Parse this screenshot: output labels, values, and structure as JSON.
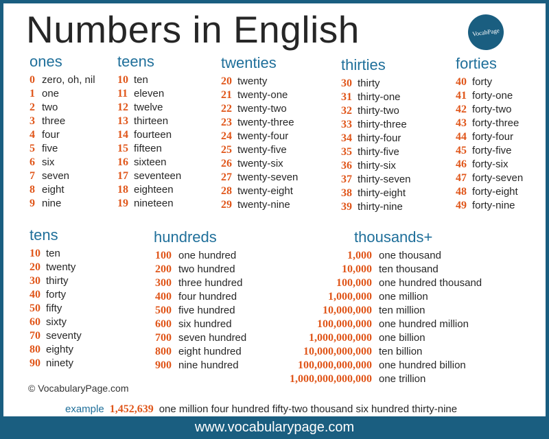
{
  "title": "Numbers in English",
  "logo": "VocabPage",
  "ones": {
    "heading": "ones",
    "items": [
      [
        "0",
        "zero, oh, nil"
      ],
      [
        "1",
        "one"
      ],
      [
        "2",
        "two"
      ],
      [
        "3",
        "three"
      ],
      [
        "4",
        "four"
      ],
      [
        "5",
        "five"
      ],
      [
        "6",
        "six"
      ],
      [
        "7",
        "seven"
      ],
      [
        "8",
        "eight"
      ],
      [
        "9",
        "nine"
      ]
    ]
  },
  "teens": {
    "heading": "teens",
    "items": [
      [
        "10",
        "ten"
      ],
      [
        "11",
        "eleven"
      ],
      [
        "12",
        "twelve"
      ],
      [
        "13",
        "thirteen"
      ],
      [
        "14",
        "fourteen"
      ],
      [
        "15",
        "fifteen"
      ],
      [
        "16",
        "sixteen"
      ],
      [
        "17",
        "seventeen"
      ],
      [
        "18",
        "eighteen"
      ],
      [
        "19",
        "nineteen"
      ]
    ]
  },
  "twenties": {
    "heading": "twenties",
    "items": [
      [
        "20",
        "twenty"
      ],
      [
        "21",
        "twenty-one"
      ],
      [
        "22",
        "twenty-two"
      ],
      [
        "23",
        "twenty-three"
      ],
      [
        "24",
        "twenty-four"
      ],
      [
        "25",
        "twenty-five"
      ],
      [
        "26",
        "twenty-six"
      ],
      [
        "27",
        "twenty-seven"
      ],
      [
        "28",
        "twenty-eight"
      ],
      [
        "29",
        "twenty-nine"
      ]
    ]
  },
  "thirties": {
    "heading": "thirties",
    "items": [
      [
        "30",
        "thirty"
      ],
      [
        "31",
        "thirty-one"
      ],
      [
        "32",
        "thirty-two"
      ],
      [
        "33",
        "thirty-three"
      ],
      [
        "34",
        "thirty-four"
      ],
      [
        "35",
        "thirty-five"
      ],
      [
        "36",
        "thirty-six"
      ],
      [
        "37",
        "thirty-seven"
      ],
      [
        "38",
        "thirty-eight"
      ],
      [
        "39",
        "thirty-nine"
      ]
    ]
  },
  "forties": {
    "heading": "forties",
    "items": [
      [
        "40",
        "forty"
      ],
      [
        "41",
        "forty-one"
      ],
      [
        "42",
        "forty-two"
      ],
      [
        "43",
        "forty-three"
      ],
      [
        "44",
        "forty-four"
      ],
      [
        "45",
        "forty-five"
      ],
      [
        "46",
        "forty-six"
      ],
      [
        "47",
        "forty-seven"
      ],
      [
        "48",
        "forty-eight"
      ],
      [
        "49",
        "forty-nine"
      ]
    ]
  },
  "tens": {
    "heading": "tens",
    "items": [
      [
        "10",
        "ten"
      ],
      [
        "20",
        "twenty"
      ],
      [
        "30",
        "thirty"
      ],
      [
        "40",
        "forty"
      ],
      [
        "50",
        "fifty"
      ],
      [
        "60",
        "sixty"
      ],
      [
        "70",
        "seventy"
      ],
      [
        "80",
        "eighty"
      ],
      [
        "90",
        "ninety"
      ]
    ]
  },
  "hundreds": {
    "heading": "hundreds",
    "items": [
      [
        "100",
        "one hundred"
      ],
      [
        "200",
        "two hundred"
      ],
      [
        "300",
        "three hundred"
      ],
      [
        "400",
        "four hundred"
      ],
      [
        "500",
        "five hundred"
      ],
      [
        "600",
        "six hundred"
      ],
      [
        "700",
        "seven hundred"
      ],
      [
        "800",
        "eight hundred"
      ],
      [
        "900",
        "nine hundred"
      ]
    ]
  },
  "thousands": {
    "heading": "thousands+",
    "items": [
      [
        "1,000",
        "one thousand"
      ],
      [
        "10,000",
        "ten thousand"
      ],
      [
        "100,000",
        "one hundred thousand"
      ],
      [
        "1,000,000",
        "one million"
      ],
      [
        "10,000,000",
        "ten million"
      ],
      [
        "100,000,000",
        "one hundred million"
      ],
      [
        "1,000,000,000",
        "one billion"
      ],
      [
        "10,000,000,000",
        "ten billion"
      ],
      [
        "100,000,000,000",
        "one hundred billion"
      ],
      [
        "1,000,000,000,000",
        "one trillion"
      ]
    ]
  },
  "copyright": "© VocabularyPage.com",
  "example": {
    "label": "example",
    "number": "1,452,639",
    "words": "one million four hundred fifty-two thousand six hundred thirty-nine"
  },
  "footer": "www.vocabularypage.com",
  "colors": {
    "frame": "#1a5e80",
    "heading": "#1f6f9a",
    "number": "#e0561a",
    "text": "#262626"
  }
}
